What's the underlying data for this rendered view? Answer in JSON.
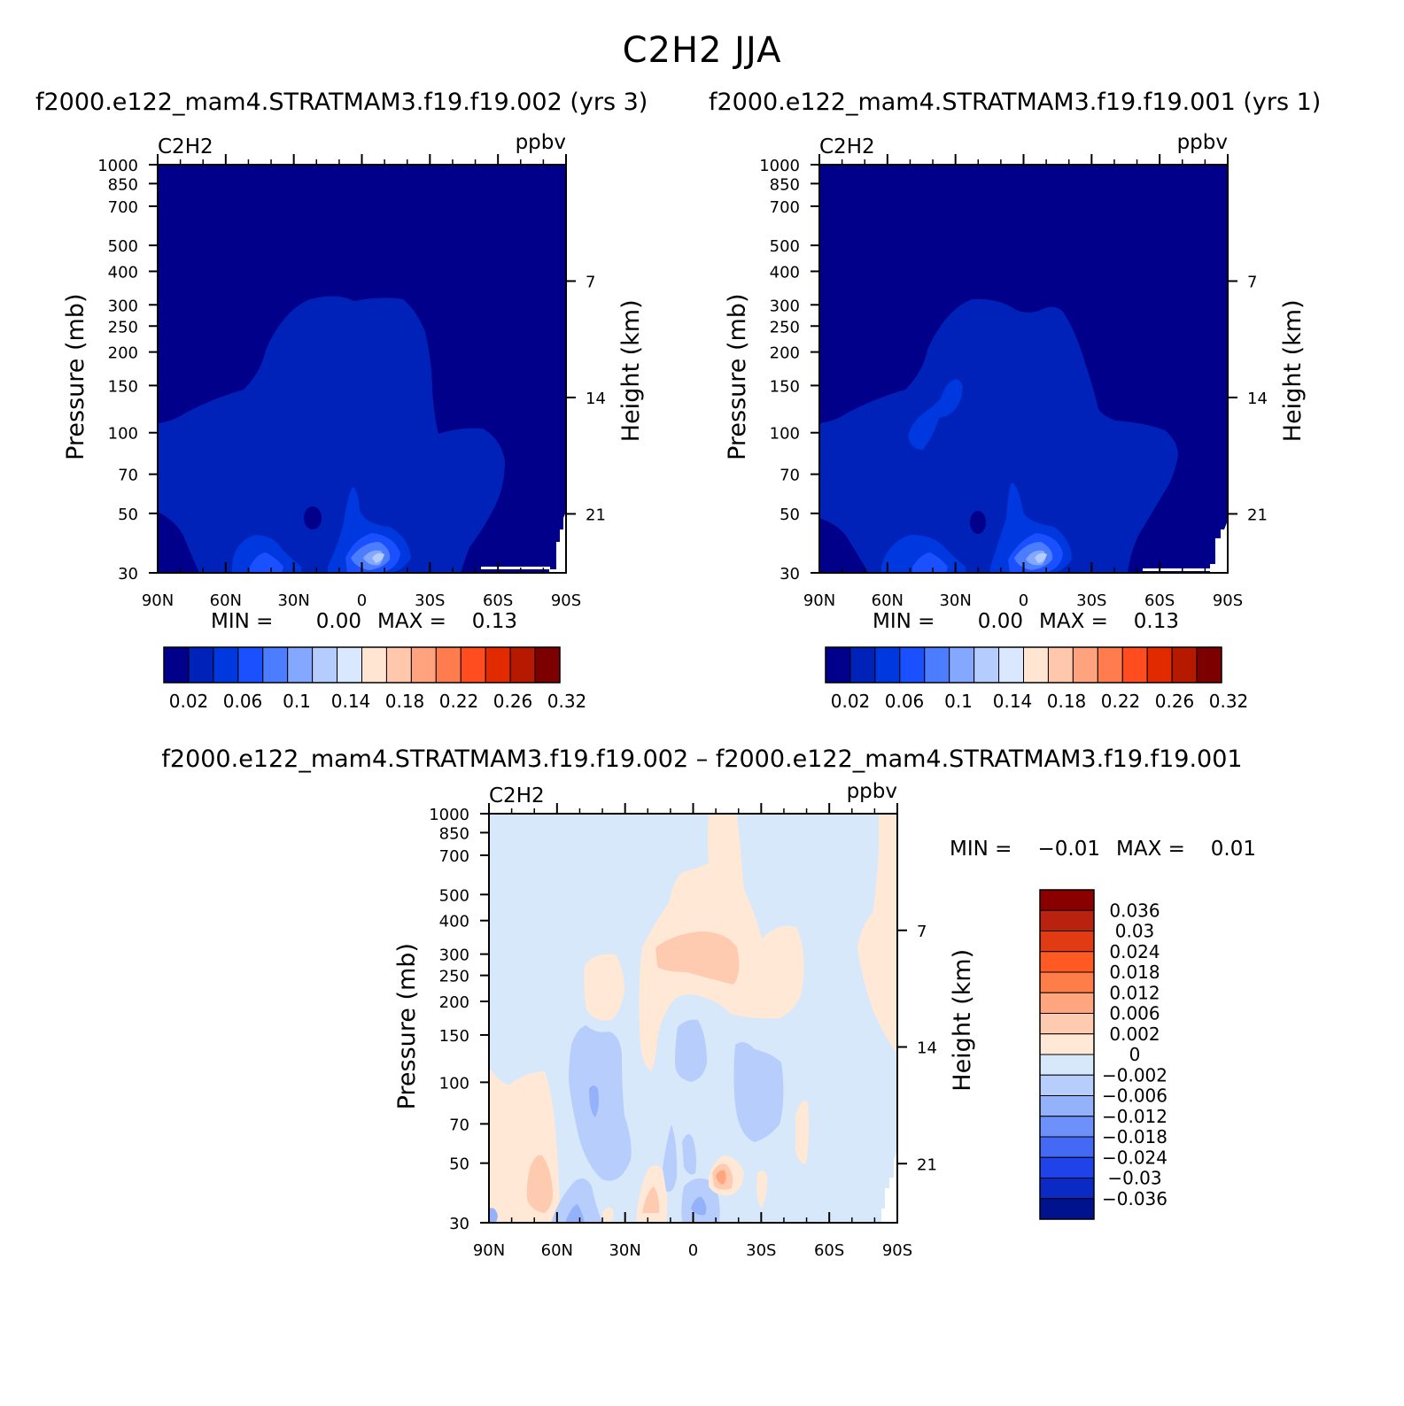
{
  "figure": {
    "title": "C2H2 JJA",
    "case1_title": "f2000.e122_mam4.STRATMAM3.f19.f19.002 (yrs 3)",
    "case2_title": "f2000.e122_mam4.STRATMAM3.f19.f19.001 (yrs 1)",
    "diff_title": "f2000.e122_mam4.STRATMAM3.f19.f19.002 – f2000.e122_mam4.STRATMAM3.f19.f19.001"
  },
  "axes": {
    "variable_label": "C2H2",
    "units_label": "ppbv",
    "ylabel_left": "Pressure (mb)",
    "ylabel_right": "Height (km)",
    "pressure_ticks": [
      "30",
      "50",
      "70",
      "100",
      "150",
      "200",
      "250",
      "300",
      "400",
      "500",
      "700",
      "850",
      "1000"
    ],
    "height_ticks": [
      "21",
      "14",
      "7"
    ],
    "lat_ticks": [
      "90N",
      "60N",
      "30N",
      "0",
      "30S",
      "60S",
      "90S"
    ]
  },
  "chart_data": [
    {
      "type": "heatmap",
      "panel": "case1",
      "title": "C2H2",
      "units": "ppbv",
      "xlabel": "",
      "ylabel": "Pressure (mb)",
      "ylabel_right": "Height (km)",
      "x_range": [
        "90N",
        "90S"
      ],
      "y_range_mb": [
        1000,
        30
      ],
      "y_scale": "log",
      "min_label": "MIN =",
      "min_value": "0.00",
      "max_label": "MAX =",
      "max_value": "0.13",
      "colorbar_levels": [
        0.02,
        0.04,
        0.06,
        0.08,
        0.1,
        0.12,
        0.14,
        0.16,
        0.18,
        0.2,
        0.22,
        0.24,
        0.26,
        0.28,
        0.32
      ],
      "colorbar_labels": [
        "0.02",
        "0.06",
        "0.1",
        "0.14",
        "0.18",
        "0.22",
        "0.26",
        "0.32"
      ],
      "colorbar_colors": [
        "#00008a",
        "#0022b8",
        "#0038e0",
        "#1a50ff",
        "#4c7dff",
        "#84a8ff",
        "#b5ccff",
        "#d9e8ff",
        "#ffe5d2",
        "#ffc8ad",
        "#ffa27e",
        "#ff7c4e",
        "#ff4d1f",
        "#e22a00",
        "#b51a00",
        "#7d0000"
      ]
    },
    {
      "type": "heatmap",
      "panel": "case2",
      "title": "C2H2",
      "units": "ppbv",
      "xlabel": "",
      "ylabel": "Pressure (mb)",
      "ylabel_right": "Height (km)",
      "x_range": [
        "90N",
        "90S"
      ],
      "y_range_mb": [
        1000,
        30
      ],
      "y_scale": "log",
      "min_label": "MIN =",
      "min_value": "0.00",
      "max_label": "MAX =",
      "max_value": "0.13",
      "colorbar_labels": [
        "0.02",
        "0.06",
        "0.1",
        "0.14",
        "0.18",
        "0.22",
        "0.26",
        "0.32"
      ]
    },
    {
      "type": "heatmap",
      "panel": "difference",
      "title": "C2H2",
      "units": "ppbv",
      "xlabel": "",
      "ylabel": "Pressure (mb)",
      "ylabel_right": "Height (km)",
      "x_range": [
        "90N",
        "90S"
      ],
      "y_range_mb": [
        1000,
        30
      ],
      "y_scale": "log",
      "min_label": "MIN =",
      "min_value": "−0.01",
      "max_label": "MAX =",
      "max_value": "0.01",
      "colorbar_levels": [
        -0.036,
        -0.03,
        -0.024,
        -0.018,
        -0.012,
        -0.006,
        -0.002,
        0,
        0.002,
        0.006,
        0.012,
        0.018,
        0.024,
        0.03,
        0.036
      ],
      "colorbar_labels": [
        "0.036",
        "0.03",
        "0.024",
        "0.018",
        "0.012",
        "0.006",
        "0.002",
        "0",
        "−0.002",
        "−0.006",
        "−0.012",
        "−0.018",
        "−0.024",
        "−0.03",
        "−0.036"
      ],
      "colorbar_colors": [
        "#8a0000",
        "#b8220f",
        "#e03b12",
        "#ff5a24",
        "#ff7d48",
        "#ffa67f",
        "#ffcbb0",
        "#ffe8d6",
        "#d8e8fb",
        "#b7cdfb",
        "#94b2fa",
        "#6e90fa",
        "#4469f5",
        "#1f43e8",
        "#0b2ac4",
        "#00128e"
      ]
    }
  ]
}
